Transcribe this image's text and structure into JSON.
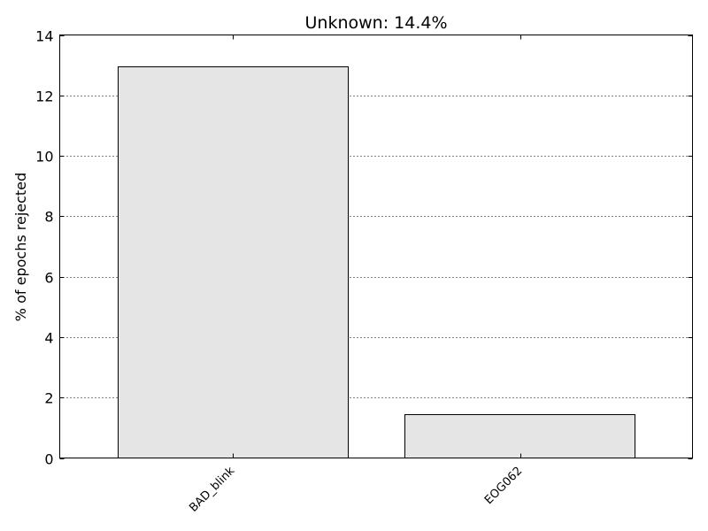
{
  "chart_data": {
    "type": "bar",
    "title": "Unknown: 14.4%",
    "xlabel": "",
    "ylabel": "% of epochs rejected",
    "categories": [
      "BAD_blink",
      "EOG062"
    ],
    "values": [
      12.96,
      1.44
    ],
    "ylim": [
      0,
      14
    ],
    "yticks": [
      0,
      2,
      4,
      6,
      8,
      10,
      12,
      14
    ],
    "grid": true,
    "bar_color": "#e5e5e5",
    "edge_color": "#000000"
  }
}
